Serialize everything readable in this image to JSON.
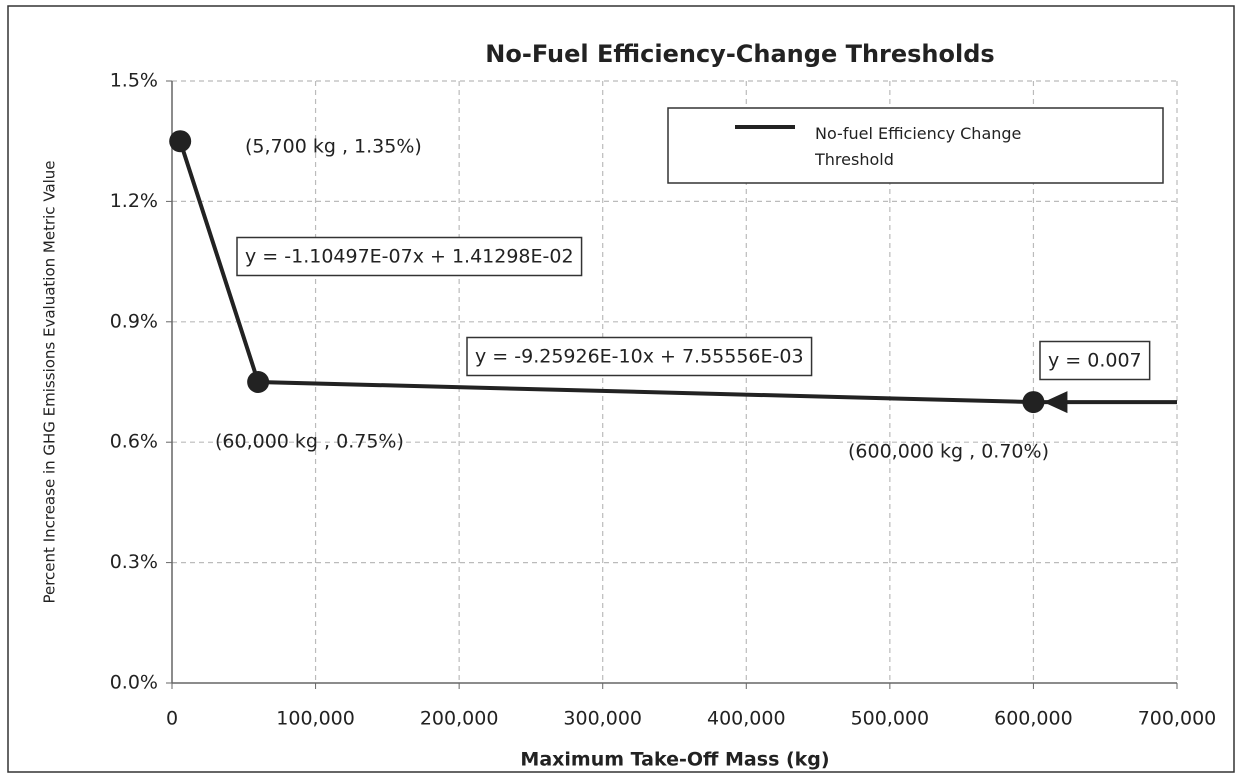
{
  "chart_data": {
    "type": "line",
    "title": "No-Fuel Efficiency-Change Thresholds",
    "xlabel": "Maximum Take-Off Mass (kg)",
    "ylabel": "Percent Increase in GHG Emissions Evaluation Metric Value",
    "x": [
      5700,
      60000,
      600000,
      700000
    ],
    "series": [
      {
        "name": "No-fuel Efficiency Change Threshold",
        "color": "#222222",
        "values": [
          1.35,
          0.75,
          0.7,
          0.7
        ]
      }
    ],
    "xlim": [
      0,
      700000
    ],
    "xticks": [
      0,
      {
        "value": 100000,
        "label": "100,000"
      },
      {
        "value": 200000,
        "label": "200,000"
      },
      {
        "value": 300000,
        "label": "300,000"
      },
      {
        "value": 400000,
        "label": "400,000"
      },
      {
        "value": 500000,
        "label": "500,000"
      },
      {
        "value": 600000,
        "label": "600,000"
      },
      {
        "value": 700000,
        "label": "700,000"
      }
    ],
    "ylim": [
      0,
      1.5
    ],
    "yticks": [
      {
        "value": 0,
        "label": "0.0%"
      },
      {
        "value": 0.3,
        "label": "0.3%"
      },
      {
        "value": 0.6,
        "label": "0.6%"
      },
      {
        "value": 0.9,
        "label": "0.9%"
      },
      {
        "value": 1.2,
        "label": "1.2%"
      },
      {
        "value": 1.5,
        "label": "1.5%"
      }
    ],
    "grid": true,
    "legend": "upper right",
    "annotations": [
      "(5,700 kg , 1.35%)",
      "y = -1.10497E-07x + 1.41298E-02",
      "(60,000 kg , 0.75%)",
      "y = -9.25926E-10x + 7.55556E-03",
      "y = 0.007",
      "(600,000 kg , 0.70%)"
    ]
  }
}
